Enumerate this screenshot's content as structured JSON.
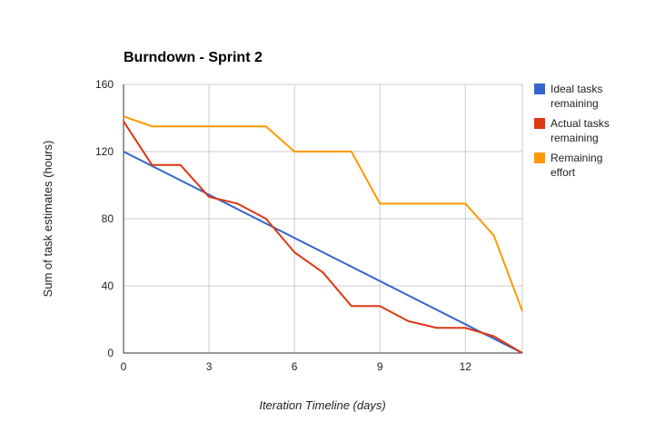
{
  "chart_data": {
    "type": "line",
    "title": "Burndown - Sprint 2",
    "xlabel": "Iteration Timeline (days)",
    "ylabel": "Sum of task estimates (hours)",
    "xlim": [
      0,
      14
    ],
    "ylim": [
      0,
      160
    ],
    "xticks": [
      0,
      3,
      6,
      9,
      12
    ],
    "yticks": [
      0,
      40,
      80,
      120,
      160
    ],
    "grid": true,
    "legend_position": "right",
    "x": [
      0,
      1,
      2,
      3,
      4,
      5,
      6,
      7,
      8,
      9,
      10,
      11,
      12,
      13,
      14
    ],
    "series": [
      {
        "name": "Ideal tasks remaining",
        "color": "#3366cc",
        "x": [
          0,
          14
        ],
        "values": [
          120,
          0
        ]
      },
      {
        "name": "Actual tasks remaining",
        "color": "#dc3912",
        "values": [
          138,
          112,
          112,
          93,
          89,
          80,
          60,
          48,
          28,
          28,
          19,
          15,
          15,
          10,
          0
        ]
      },
      {
        "name": "Remaining effort",
        "color": "#ff9900",
        "values": [
          141,
          135,
          135,
          135,
          135,
          135,
          120,
          120,
          120,
          89,
          89,
          89,
          89,
          70,
          25
        ]
      }
    ]
  }
}
